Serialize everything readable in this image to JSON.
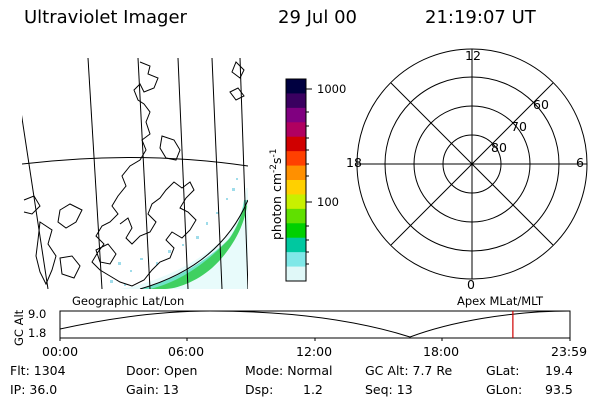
{
  "header": {
    "title": "Ultraviolet Imager",
    "date": "29 Jul 00",
    "time": "21:19:07 UT"
  },
  "colorbar": {
    "label": "photon cm",
    "label_exp1": "-2",
    "label_mid": "s",
    "label_exp2": "-1",
    "ticks": [
      "1000",
      "100"
    ],
    "colors": [
      "#000040",
      "#3a0060",
      "#800080",
      "#b00060",
      "#d00000",
      "#ff4000",
      "#ff9000",
      "#ffd000",
      "#c8f000",
      "#60e000",
      "#00d000",
      "#00c8a0",
      "#80e8e8",
      "#e0f8f8"
    ]
  },
  "geo_map": {
    "label": "Geographic Lat/Lon"
  },
  "polar_plot": {
    "label": "Apex MLat/MLT",
    "mlt_labels": {
      "top": "12",
      "left": "18",
      "right": "6",
      "bottom": "0"
    },
    "lat_labels": [
      "60",
      "70",
      "80"
    ]
  },
  "altitude_plot": {
    "ylabel": "GC Alt",
    "yticks": [
      "9.0",
      "1.8"
    ],
    "xticks": [
      "00:00",
      "06:00",
      "12:00",
      "18:00",
      "23:59"
    ],
    "marker_color": "#d00000",
    "marker_time_fraction": 0.888
  },
  "footer": {
    "flt": "Flt: 1304",
    "ip": "IP: 36.0",
    "door": "Door: Open",
    "gain": "Gain: 13",
    "mode": "Mode: Normal",
    "dsp": "Dsp:",
    "dsp_val": "1.2",
    "gcalt": "GC Alt: 7.7 Re",
    "seq": "Seq: 13",
    "glat": "GLat:",
    "glat_val": "19.4",
    "glon": "GLon:",
    "glon_val": "93.5"
  }
}
